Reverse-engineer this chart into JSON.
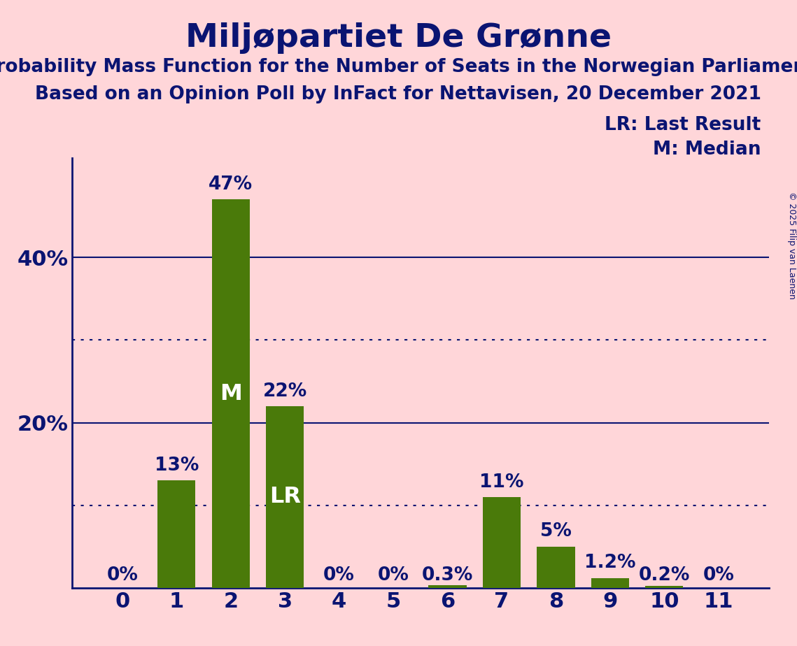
{
  "title": "Miljøpartiet De Grønne",
  "subtitle1": "Probability Mass Function for the Number of Seats in the Norwegian Parliament",
  "subtitle2": "Based on an Opinion Poll by InFact for Nettavisen, 20 December 2021",
  "copyright": "© 2025 Filip van Laenen",
  "categories": [
    0,
    1,
    2,
    3,
    4,
    5,
    6,
    7,
    8,
    9,
    10,
    11
  ],
  "values": [
    0.0,
    13.0,
    47.0,
    22.0,
    0.0,
    0.0,
    0.3,
    11.0,
    5.0,
    1.2,
    0.2,
    0.0
  ],
  "bar_labels": [
    "0%",
    "13%",
    "47%",
    "22%",
    "0%",
    "0%",
    "0.3%",
    "11%",
    "5%",
    "1.2%",
    "0.2%",
    "0%"
  ],
  "bar_color": "#4a7a0a",
  "background_color": "#FFD6D9",
  "title_color": "#0a1472",
  "axis_color": "#0a1472",
  "text_color": "#0a1472",
  "median_bar": 2,
  "lr_bar": 3,
  "legend_lr": "LR: Last Result",
  "legend_m": "M: Median",
  "ylim": [
    0,
    52
  ],
  "yticks": [
    20,
    40
  ],
  "dotted_lines": [
    10,
    30
  ],
  "solid_lines": [
    20,
    40
  ],
  "title_fontsize": 34,
  "subtitle_fontsize": 19,
  "tick_fontsize": 22,
  "bar_label_fontsize": 19,
  "inside_label_fontsize": 23,
  "legend_fontsize": 19,
  "copyright_fontsize": 9
}
